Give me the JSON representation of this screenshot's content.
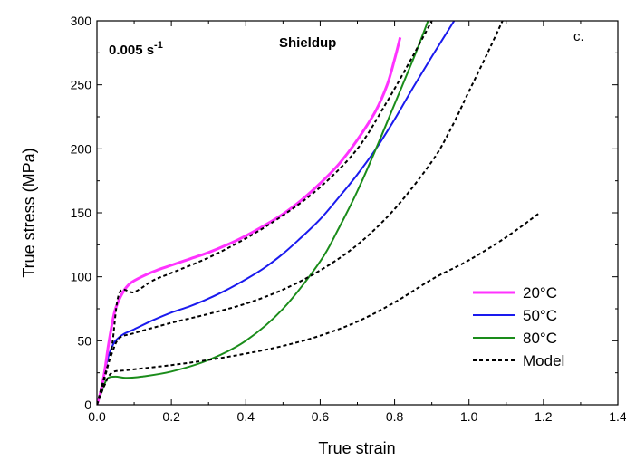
{
  "chart_data": {
    "type": "line",
    "xlabel": "True strain",
    "ylabel": "True stress (MPa)",
    "xlim": [
      0,
      1.4
    ],
    "ylim": [
      0,
      300
    ],
    "x_ticks": [
      "0.0",
      "0.2",
      "0.4",
      "0.6",
      "0.8",
      "1.0",
      "1.2",
      "1.4"
    ],
    "y_ticks": [
      "0",
      "50",
      "100",
      "150",
      "200",
      "250",
      "300"
    ],
    "annotations": {
      "rate_main": "0.005 s",
      "rate_exp": "-1",
      "material": "Shieldup",
      "panel": "c."
    },
    "legend_position": "bottom-right",
    "series": [
      {
        "name": "20°C",
        "color": "#ff33ff",
        "style": "solid",
        "width": 3,
        "points": [
          [
            0,
            0
          ],
          [
            0.01,
            10
          ],
          [
            0.02,
            25
          ],
          [
            0.03,
            45
          ],
          [
            0.04,
            62
          ],
          [
            0.05,
            75
          ],
          [
            0.07,
            88
          ],
          [
            0.09,
            95
          ],
          [
            0.12,
            100
          ],
          [
            0.16,
            105
          ],
          [
            0.2,
            109
          ],
          [
            0.25,
            114
          ],
          [
            0.3,
            119
          ],
          [
            0.35,
            125
          ],
          [
            0.4,
            132
          ],
          [
            0.45,
            140
          ],
          [
            0.5,
            149
          ],
          [
            0.55,
            160
          ],
          [
            0.6,
            173
          ],
          [
            0.65,
            188
          ],
          [
            0.7,
            207
          ],
          [
            0.75,
            230
          ],
          [
            0.78,
            250
          ],
          [
            0.8,
            270
          ],
          [
            0.815,
            287
          ]
        ]
      },
      {
        "name": "50°C",
        "color": "#1a1aee",
        "style": "solid",
        "width": 2,
        "points": [
          [
            0,
            0
          ],
          [
            0.01,
            10
          ],
          [
            0.02,
            25
          ],
          [
            0.03,
            37
          ],
          [
            0.04,
            45
          ],
          [
            0.05,
            50
          ],
          [
            0.07,
            55
          ],
          [
            0.1,
            59
          ],
          [
            0.15,
            66
          ],
          [
            0.2,
            72
          ],
          [
            0.25,
            77
          ],
          [
            0.3,
            83
          ],
          [
            0.35,
            90
          ],
          [
            0.4,
            98
          ],
          [
            0.45,
            107
          ],
          [
            0.5,
            118
          ],
          [
            0.55,
            131
          ],
          [
            0.6,
            145
          ],
          [
            0.65,
            162
          ],
          [
            0.7,
            180
          ],
          [
            0.75,
            200
          ],
          [
            0.8,
            223
          ],
          [
            0.85,
            248
          ],
          [
            0.9,
            272
          ],
          [
            0.96,
            300
          ]
        ]
      },
      {
        "name": "80°C",
        "color": "#1a8c1a",
        "style": "solid",
        "width": 2,
        "points": [
          [
            0,
            0
          ],
          [
            0.01,
            8
          ],
          [
            0.02,
            16
          ],
          [
            0.03,
            21
          ],
          [
            0.05,
            22
          ],
          [
            0.08,
            21
          ],
          [
            0.12,
            22
          ],
          [
            0.2,
            26
          ],
          [
            0.3,
            35
          ],
          [
            0.4,
            50
          ],
          [
            0.5,
            75
          ],
          [
            0.6,
            112
          ],
          [
            0.65,
            138
          ],
          [
            0.7,
            167
          ],
          [
            0.75,
            200
          ],
          [
            0.8,
            235
          ],
          [
            0.85,
            270
          ],
          [
            0.89,
            300
          ]
        ]
      },
      {
        "name": "Model",
        "color": "#000000",
        "style": "dashed",
        "width": 2,
        "segments": [
          [
            [
              0,
              0
            ],
            [
              0.02,
              20
            ],
            [
              0.04,
              45
            ],
            [
              0.06,
              87
            ],
            [
              0.1,
              88
            ],
            [
              0.15,
              97
            ],
            [
              0.2,
              103
            ],
            [
              0.3,
              115
            ],
            [
              0.4,
              130
            ],
            [
              0.5,
              148
            ],
            [
              0.6,
              170
            ],
            [
              0.7,
              200
            ],
            [
              0.78,
              237
            ],
            [
              0.85,
              273
            ],
            [
              0.9,
              300
            ]
          ],
          [
            [
              0,
              0
            ],
            [
              0.02,
              22
            ],
            [
              0.04,
              40
            ],
            [
              0.06,
              52
            ],
            [
              0.1,
              56
            ],
            [
              0.2,
              64
            ],
            [
              0.3,
              71
            ],
            [
              0.4,
              79
            ],
            [
              0.5,
              90
            ],
            [
              0.6,
              105
            ],
            [
              0.7,
              125
            ],
            [
              0.8,
              153
            ],
            [
              0.9,
              190
            ],
            [
              0.95,
              215
            ],
            [
              1.0,
              245
            ],
            [
              1.05,
              275
            ],
            [
              1.09,
              300
            ]
          ],
          [
            [
              0,
              0
            ],
            [
              0.02,
              15
            ],
            [
              0.04,
              25
            ],
            [
              0.08,
              27
            ],
            [
              0.2,
              31
            ],
            [
              0.3,
              35
            ],
            [
              0.4,
              40
            ],
            [
              0.5,
              46
            ],
            [
              0.6,
              54
            ],
            [
              0.7,
              65
            ],
            [
              0.8,
              80
            ],
            [
              0.9,
              98
            ],
            [
              1.0,
              113
            ],
            [
              1.1,
              131
            ],
            [
              1.19,
              150
            ]
          ]
        ]
      }
    ]
  }
}
